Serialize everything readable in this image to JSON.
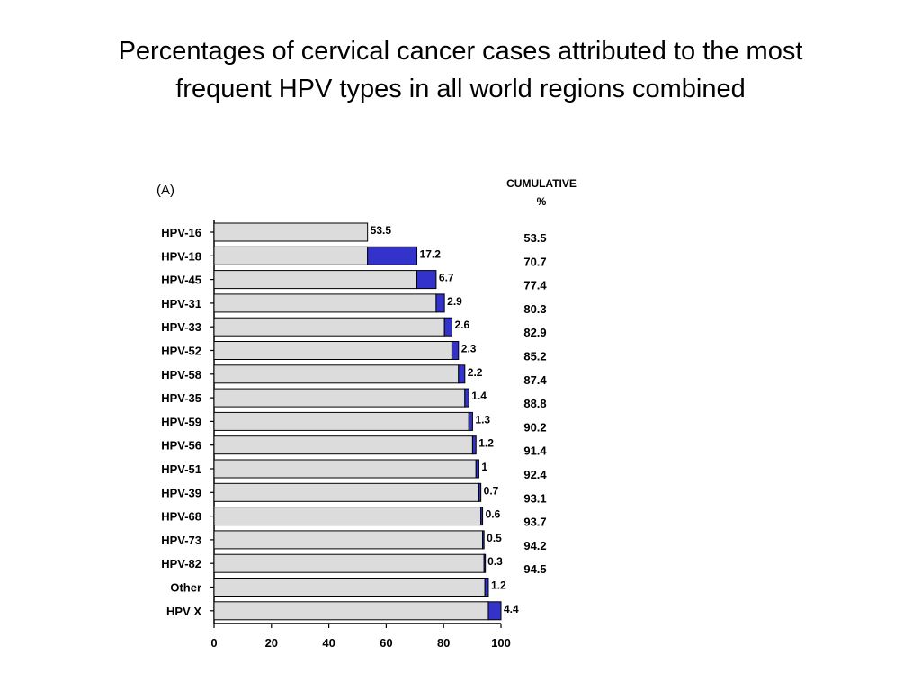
{
  "slide": {
    "title_line_1": "Percentages of cervical cancer cases attributed to the most",
    "title_line_2": "frequent HPV types in all world regions combined"
  },
  "chart_data": {
    "type": "bar",
    "subtype": "stacked-horizontal-cumulative",
    "panel_label": "(A)",
    "cumulative_header": [
      "CUMULATIVE",
      "%"
    ],
    "categories": [
      "HPV-16",
      "HPV-18",
      "HPV-45",
      "HPV-31",
      "HPV-33",
      "HPV-52",
      "HPV-58",
      "HPV-35",
      "HPV-59",
      "HPV-56",
      "HPV-51",
      "HPV-39",
      "HPV-68",
      "HPV-73",
      "HPV-82",
      "Other",
      "HPV X"
    ],
    "values": [
      53.5,
      17.2,
      6.7,
      2.9,
      2.6,
      2.3,
      2.2,
      1.4,
      1.3,
      1.2,
      1,
      0.7,
      0.6,
      0.5,
      0.3,
      1.2,
      4.4
    ],
    "value_labels": [
      "53.5",
      "17.2",
      "6.7",
      "2.9",
      "2.6",
      "2.3",
      "2.2",
      "1.4",
      "1.3",
      "1.2",
      "1",
      "0.7",
      "0.6",
      "0.5",
      "0.3",
      "1.2",
      "4.4"
    ],
    "cumulative": [
      "53.5",
      "70.7",
      "77.4",
      "80.3",
      "82.9",
      "85.2",
      "87.4",
      "88.8",
      "90.2",
      "91.4",
      "92.4",
      "93.1",
      "93.7",
      "94.2",
      "94.5",
      "",
      ""
    ],
    "xticks": [
      0,
      20,
      40,
      60,
      80,
      100
    ],
    "xlim": [
      0,
      100
    ],
    "xlabel": "",
    "ylabel": "",
    "grid": false,
    "legend": "none",
    "colors": {
      "base": "#dcdcdc",
      "increment": "#3333cc",
      "outline": "#000000"
    }
  }
}
